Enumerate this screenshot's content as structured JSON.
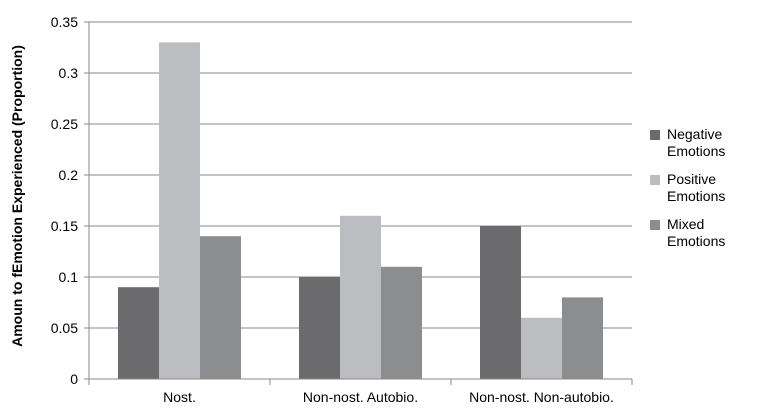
{
  "chart_data": {
    "type": "bar",
    "title": "",
    "xlabel": "",
    "ylabel": "Amoun to fEmotion Experienced (Proportion)",
    "ylim": [
      0,
      0.35
    ],
    "yticks": [
      0,
      0.05,
      0.1,
      0.15,
      0.2,
      0.25,
      0.3,
      0.35
    ],
    "ytick_labels": [
      "0",
      "0.05",
      "0.1",
      "0.15",
      "0.2",
      "0.25",
      "0.3",
      "0.35"
    ],
    "grid": true,
    "legend_position": "right",
    "categories": [
      "Nost.",
      "Non-nost. Autobio.",
      "Non-nost. Non-autobio."
    ],
    "series": [
      {
        "name": "Negative Emotions",
        "legend_lines": [
          "Negative",
          "Emotions"
        ],
        "color": "#6b6b6d",
        "values": [
          0.09,
          0.1,
          0.15
        ]
      },
      {
        "name": "Positive Emotions",
        "legend_lines": [
          "Positive",
          "Emotions"
        ],
        "color": "#bcbdc0",
        "values": [
          0.33,
          0.16,
          0.06
        ]
      },
      {
        "name": "Mixed Emotions",
        "legend_lines": [
          "Mixed",
          "Emotions"
        ],
        "color": "#8c8d8f",
        "values": [
          0.14,
          0.11,
          0.08
        ]
      }
    ]
  }
}
